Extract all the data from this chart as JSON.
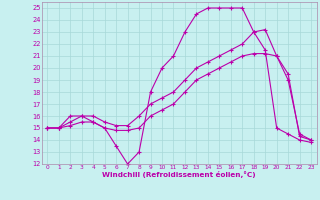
{
  "xlabel": "Windchill (Refroidissement éolien,°C)",
  "bg_color": "#c8f0f0",
  "line_color": "#bb00aa",
  "grid_color": "#a8d8d8",
  "spine_color": "#aa88aa",
  "xlim": [
    -0.5,
    23.5
  ],
  "ylim": [
    12,
    25.5
  ],
  "xticks": [
    0,
    1,
    2,
    3,
    4,
    5,
    6,
    7,
    8,
    9,
    10,
    11,
    12,
    13,
    14,
    15,
    16,
    17,
    18,
    19,
    20,
    21,
    22,
    23
  ],
  "yticks": [
    12,
    13,
    14,
    15,
    16,
    17,
    18,
    19,
    20,
    21,
    22,
    23,
    24,
    25
  ],
  "line1_x": [
    0,
    1,
    2,
    3,
    4,
    5,
    6,
    7,
    8,
    9,
    10,
    11,
    12,
    13,
    14,
    15,
    16,
    17,
    18,
    19,
    20,
    21,
    22,
    23
  ],
  "line1_y": [
    15,
    15,
    16,
    16,
    15.5,
    15,
    13.5,
    12,
    13,
    18,
    20,
    21,
    23,
    24.5,
    25,
    25,
    25,
    25,
    23,
    21.5,
    15,
    14.5,
    14,
    13.8
  ],
  "line2_x": [
    0,
    1,
    2,
    3,
    4,
    5,
    6,
    7,
    8,
    9,
    10,
    11,
    12,
    13,
    14,
    15,
    16,
    17,
    18,
    19,
    20,
    21,
    22,
    23
  ],
  "line2_y": [
    15,
    15,
    15.5,
    16,
    16,
    15.5,
    15.2,
    15.2,
    16,
    17,
    17.5,
    18,
    19,
    20,
    20.5,
    21,
    21.5,
    22,
    23,
    23.2,
    21,
    19,
    14.5,
    14
  ],
  "line3_x": [
    0,
    1,
    2,
    3,
    4,
    5,
    6,
    7,
    8,
    9,
    10,
    11,
    12,
    13,
    14,
    15,
    16,
    17,
    18,
    19,
    20,
    21,
    22,
    23
  ],
  "line3_y": [
    15,
    15,
    15.2,
    15.5,
    15.5,
    15,
    14.8,
    14.8,
    15,
    16,
    16.5,
    17,
    18,
    19,
    19.5,
    20,
    20.5,
    21,
    21.2,
    21.2,
    21,
    19.5,
    14.3,
    14
  ]
}
